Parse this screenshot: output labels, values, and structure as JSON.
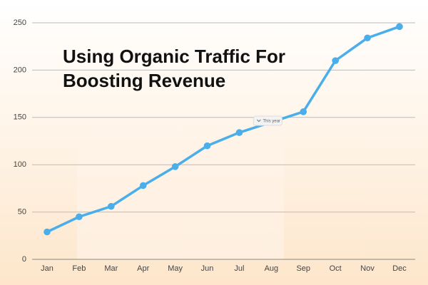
{
  "chart_data": {
    "type": "line",
    "title": "Using Organic Traffic For Boosting Revenue",
    "categories": [
      "Jan",
      "Feb",
      "Mar",
      "Apr",
      "May",
      "Jun",
      "Jul",
      "Aug",
      "Sep",
      "Oct",
      "Nov",
      "Dec"
    ],
    "values": [
      29,
      45,
      56,
      78,
      98,
      120,
      134,
      145,
      156,
      210,
      234,
      246
    ],
    "color": "#4aaeea",
    "ylim": [
      0,
      250
    ],
    "yticks": [
      0,
      50,
      100,
      150,
      200,
      250
    ],
    "grid": true,
    "annotation": "This year"
  }
}
